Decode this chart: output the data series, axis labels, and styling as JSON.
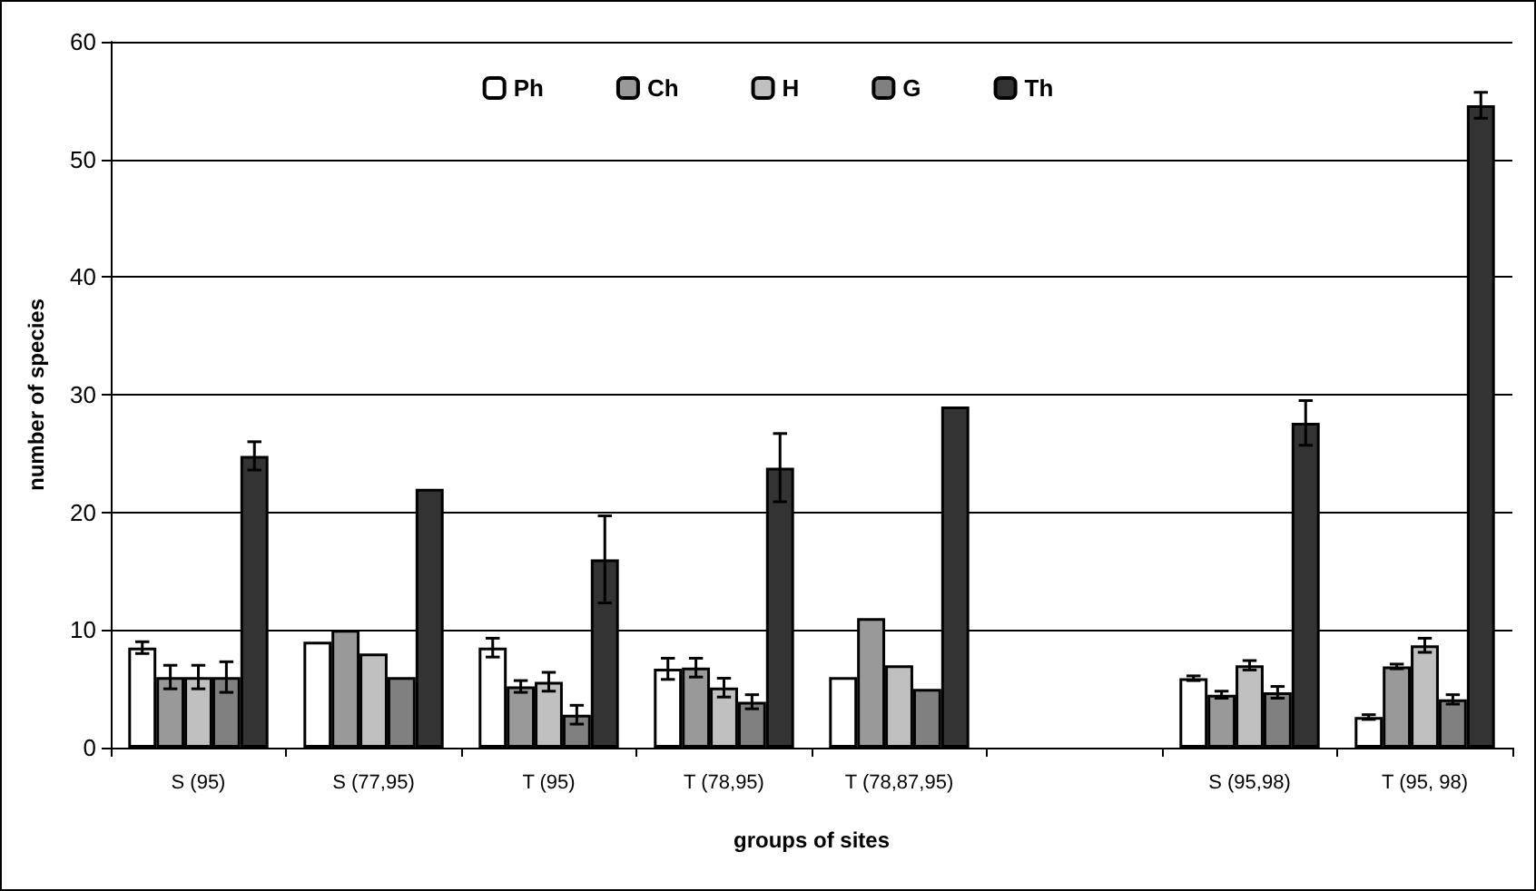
{
  "chart_data": {
    "type": "bar",
    "xlabel": "groups of sites",
    "ylabel": "number of species",
    "categories": [
      "S (95)",
      "S (77,95)",
      "T (95)",
      "T (78,95)",
      "T (78,87,95)",
      null,
      "S (95,98)",
      "T (95, 98)"
    ],
    "series": [
      {
        "name": "Ph",
        "color": "#ffffff",
        "values": [
          8.5,
          9,
          8.5,
          6.7,
          6,
          null,
          5.9,
          2.6
        ],
        "errors": [
          0.5,
          null,
          0.8,
          0.9,
          null,
          null,
          0.2,
          0.2
        ]
      },
      {
        "name": "Ch",
        "color": "#999999",
        "values": [
          6,
          10,
          5.2,
          6.8,
          11,
          null,
          4.5,
          6.9
        ],
        "errors": [
          1,
          null,
          0.5,
          0.8,
          null,
          null,
          0.3,
          0.2
        ]
      },
      {
        "name": "H",
        "color": "#c0c0c0",
        "values": [
          6,
          8,
          5.6,
          5.1,
          7,
          null,
          7,
          8.7
        ],
        "errors": [
          1,
          null,
          0.8,
          0.8,
          null,
          null,
          0.4,
          0.6
        ]
      },
      {
        "name": "G",
        "color": "#808080",
        "values": [
          6,
          6,
          2.8,
          3.9,
          5,
          null,
          4.7,
          4.1
        ],
        "errors": [
          1.3,
          null,
          0.8,
          0.6,
          null,
          null,
          0.5,
          0.4
        ]
      },
      {
        "name": "Th",
        "color": "#333333",
        "values": [
          24.8,
          22,
          16,
          23.8,
          29,
          null,
          27.6,
          54.6
        ],
        "errors": [
          1.2,
          null,
          3.7,
          2.9,
          null,
          null,
          1.9,
          1.1
        ]
      }
    ],
    "ylim": [
      0,
      60
    ],
    "yticks": [
      0,
      10,
      20,
      30,
      40,
      50,
      60
    ],
    "grid": "y",
    "legend": "top"
  }
}
